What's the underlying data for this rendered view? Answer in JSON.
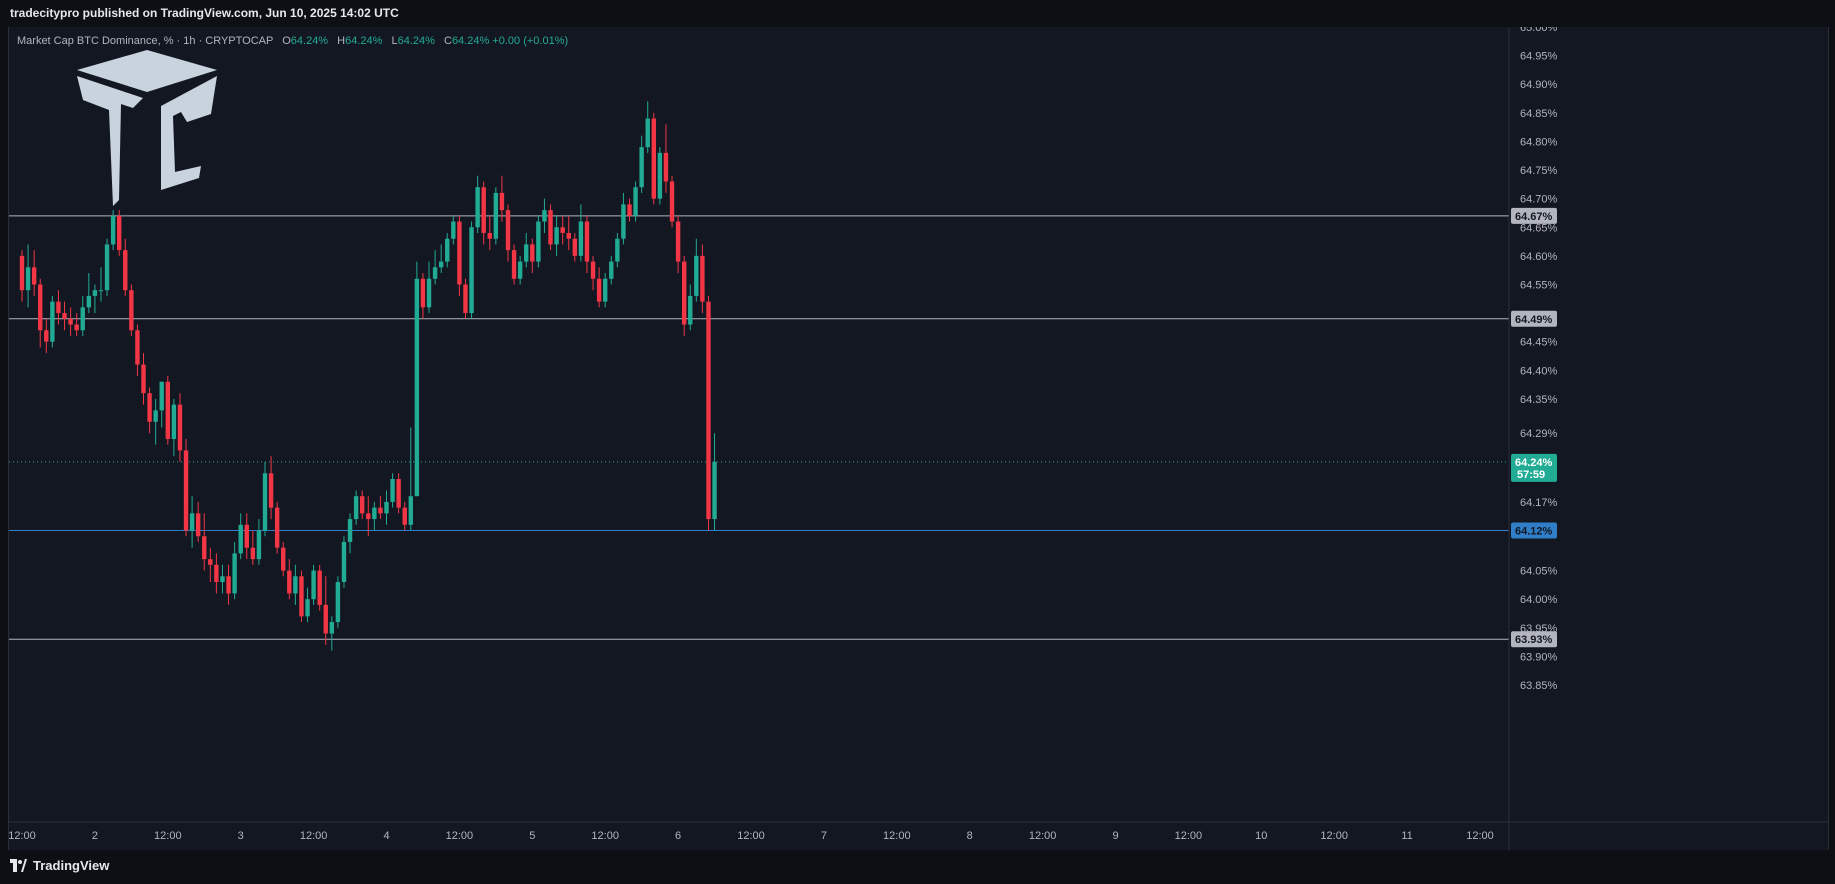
{
  "header": {
    "publish_line": "tradecitypro published on TradingView.com, Jun 10, 2025 14:02 UTC"
  },
  "legend": {
    "symbol": "Market Cap BTC Dominance, % · 1h · CRYPTOCAP",
    "open_label": "O",
    "open_value": "64.24%",
    "high_label": "H",
    "high_value": "64.24%",
    "low_label": "L",
    "low_value": "64.24%",
    "close_label": "C",
    "close_value": "64.24%",
    "change": "+0.00 (+0.01%)"
  },
  "footer": {
    "brand": "TradingView"
  },
  "colors": {
    "up": "#22ab94",
    "down": "#f23645",
    "grid": "#1e222d",
    "axis_text": "#b2b5be",
    "level": "#9598a1",
    "support": "#2962ff"
  },
  "chart_data": {
    "type": "candlestick",
    "title": "Market Cap BTC Dominance, % · 1h · CRYPTOCAP",
    "ylim": [
      63.82,
      65.0
    ],
    "y_ticks": [
      {
        "v": 65.0,
        "label": "65.00%"
      },
      {
        "v": 64.95,
        "label": "64.95%"
      },
      {
        "v": 64.9,
        "label": "64.90%"
      },
      {
        "v": 64.85,
        "label": "64.85%"
      },
      {
        "v": 64.8,
        "label": "64.80%"
      },
      {
        "v": 64.75,
        "label": "64.75%"
      },
      {
        "v": 64.7,
        "label": "64.70%"
      },
      {
        "v": 64.65,
        "label": "64.65%"
      },
      {
        "v": 64.6,
        "label": "64.60%"
      },
      {
        "v": 64.55,
        "label": "64.55%"
      },
      {
        "v": 64.45,
        "label": "64.45%"
      },
      {
        "v": 64.4,
        "label": "64.40%"
      },
      {
        "v": 64.35,
        "label": "64.35%"
      },
      {
        "v": 64.29,
        "label": "64.29%"
      },
      {
        "v": 64.17,
        "label": "64.17%"
      },
      {
        "v": 64.05,
        "label": "64.05%"
      },
      {
        "v": 64.0,
        "label": "64.00%"
      },
      {
        "v": 63.95,
        "label": "63.95%"
      },
      {
        "v": 63.9,
        "label": "63.90%"
      },
      {
        "v": 63.85,
        "label": "63.85%"
      }
    ],
    "x_ticks": [
      {
        "t": 0,
        "label": "12:00"
      },
      {
        "t": 12,
        "label": "2"
      },
      {
        "t": 24,
        "label": "12:00"
      },
      {
        "t": 36,
        "label": "3"
      },
      {
        "t": 48,
        "label": "12:00"
      },
      {
        "t": 60,
        "label": "4"
      },
      {
        "t": 72,
        "label": "12:00"
      },
      {
        "t": 84,
        "label": "5"
      },
      {
        "t": 96,
        "label": "12:00"
      },
      {
        "t": 108,
        "label": "6"
      },
      {
        "t": 120,
        "label": "12:00"
      },
      {
        "t": 132,
        "label": "7"
      },
      {
        "t": 144,
        "label": "12:00"
      },
      {
        "t": 156,
        "label": "8"
      },
      {
        "t": 168,
        "label": "12:00"
      },
      {
        "t": 180,
        "label": "9"
      },
      {
        "t": 192,
        "label": "12:00"
      },
      {
        "t": 204,
        "label": "10"
      },
      {
        "t": 216,
        "label": "12:00"
      },
      {
        "t": 228,
        "label": "11"
      },
      {
        "t": 240,
        "label": "12:00"
      }
    ],
    "levels": [
      {
        "value": 64.67,
        "label": "64.67%",
        "kind": "resistance"
      },
      {
        "value": 64.49,
        "label": "64.49%",
        "kind": "resistance"
      },
      {
        "value": 64.12,
        "label": "64.12%",
        "kind": "support"
      },
      {
        "value": 63.93,
        "label": "63.93%",
        "kind": "support"
      }
    ],
    "last_price": {
      "value": 64.24,
      "label": "64.24%",
      "countdown": "57:59"
    },
    "candles": [
      [
        64.6,
        64.61,
        64.52,
        64.54
      ],
      [
        64.54,
        64.62,
        64.51,
        64.58
      ],
      [
        64.58,
        64.61,
        64.53,
        64.55
      ],
      [
        64.55,
        64.56,
        64.44,
        64.47
      ],
      [
        64.47,
        64.49,
        64.43,
        64.45
      ],
      [
        64.45,
        64.53,
        64.44,
        64.52
      ],
      [
        64.52,
        64.54,
        64.48,
        64.5
      ],
      [
        64.5,
        64.52,
        64.47,
        64.49
      ],
      [
        64.49,
        64.51,
        64.46,
        64.48
      ],
      [
        64.48,
        64.5,
        64.46,
        64.47
      ],
      [
        64.47,
        64.53,
        64.46,
        64.51
      ],
      [
        64.51,
        64.57,
        64.5,
        64.53
      ],
      [
        64.53,
        64.55,
        64.5,
        64.54
      ],
      [
        64.54,
        64.58,
        64.52,
        64.54
      ],
      [
        64.54,
        64.63,
        64.53,
        64.62
      ],
      [
        64.62,
        64.68,
        64.61,
        64.67
      ],
      [
        64.67,
        64.68,
        64.6,
        64.61
      ],
      [
        64.61,
        64.63,
        64.53,
        64.54
      ],
      [
        64.54,
        64.55,
        64.46,
        64.47
      ],
      [
        64.47,
        64.48,
        64.39,
        64.41
      ],
      [
        64.41,
        64.43,
        64.34,
        64.36
      ],
      [
        64.36,
        64.37,
        64.29,
        64.31
      ],
      [
        64.31,
        64.35,
        64.27,
        64.33
      ],
      [
        64.33,
        64.38,
        64.3,
        64.38
      ],
      [
        64.38,
        64.39,
        64.27,
        64.28
      ],
      [
        64.28,
        64.35,
        64.25,
        64.34
      ],
      [
        64.34,
        64.36,
        64.24,
        64.26
      ],
      [
        64.26,
        64.28,
        64.11,
        64.12
      ],
      [
        64.12,
        64.18,
        64.09,
        64.15
      ],
      [
        64.15,
        64.17,
        64.1,
        64.11
      ],
      [
        64.11,
        64.15,
        64.05,
        64.07
      ],
      [
        64.07,
        64.09,
        64.03,
        64.06
      ],
      [
        64.06,
        64.08,
        64.01,
        64.03
      ],
      [
        64.03,
        64.06,
        64.01,
        64.04
      ],
      [
        64.04,
        64.06,
        63.99,
        64.01
      ],
      [
        64.01,
        64.1,
        64.0,
        64.08
      ],
      [
        64.08,
        64.15,
        64.07,
        64.13
      ],
      [
        64.13,
        64.15,
        64.07,
        64.09
      ],
      [
        64.09,
        64.12,
        64.06,
        64.07
      ],
      [
        64.07,
        64.14,
        64.06,
        64.12
      ],
      [
        64.12,
        64.24,
        64.11,
        64.22
      ],
      [
        64.22,
        64.25,
        64.14,
        64.16
      ],
      [
        64.16,
        64.17,
        64.08,
        64.09
      ],
      [
        64.09,
        64.1,
        64.04,
        64.05
      ],
      [
        64.05,
        64.07,
        64.0,
        64.01
      ],
      [
        64.01,
        64.06,
        63.99,
        64.04
      ],
      [
        64.04,
        64.05,
        63.96,
        63.97
      ],
      [
        63.97,
        64.02,
        63.96,
        64.0
      ],
      [
        64.0,
        64.06,
        63.99,
        64.05
      ],
      [
        64.05,
        64.06,
        63.98,
        63.99
      ],
      [
        63.99,
        64.04,
        63.92,
        63.94
      ],
      [
        63.94,
        63.97,
        63.91,
        63.96
      ],
      [
        63.96,
        64.04,
        63.95,
        64.03
      ],
      [
        64.03,
        64.11,
        64.02,
        64.1
      ],
      [
        64.1,
        64.15,
        64.08,
        64.14
      ],
      [
        64.14,
        64.19,
        64.13,
        64.18
      ],
      [
        64.18,
        64.19,
        64.14,
        64.15
      ],
      [
        64.15,
        64.18,
        64.11,
        64.14
      ],
      [
        64.14,
        64.17,
        64.12,
        64.16
      ],
      [
        64.16,
        64.18,
        64.14,
        64.15
      ],
      [
        64.15,
        64.19,
        64.13,
        64.17
      ],
      [
        64.17,
        64.22,
        64.16,
        64.21
      ],
      [
        64.21,
        64.22,
        64.15,
        64.16
      ],
      [
        64.16,
        64.17,
        64.12,
        64.13
      ],
      [
        64.13,
        64.3,
        64.12,
        64.18
      ],
      [
        64.18,
        64.59,
        64.18,
        64.56
      ],
      [
        64.56,
        64.57,
        64.49,
        64.51
      ],
      [
        64.51,
        64.59,
        64.5,
        64.56
      ],
      [
        64.56,
        64.61,
        64.55,
        64.58
      ],
      [
        64.58,
        64.62,
        64.57,
        64.59
      ],
      [
        64.59,
        64.64,
        64.58,
        64.63
      ],
      [
        64.63,
        64.67,
        64.62,
        64.66
      ],
      [
        64.66,
        64.67,
        64.53,
        64.55
      ],
      [
        64.55,
        64.56,
        64.49,
        64.5
      ],
      [
        64.5,
        64.66,
        64.49,
        64.65
      ],
      [
        64.65,
        64.74,
        64.64,
        64.72
      ],
      [
        64.72,
        64.73,
        64.62,
        64.64
      ],
      [
        64.64,
        64.67,
        64.61,
        64.63
      ],
      [
        64.63,
        64.72,
        64.62,
        64.71
      ],
      [
        64.71,
        64.74,
        64.66,
        64.68
      ],
      [
        64.68,
        64.69,
        64.59,
        64.61
      ],
      [
        64.61,
        64.62,
        64.55,
        64.56
      ],
      [
        64.56,
        64.6,
        64.55,
        64.59
      ],
      [
        64.59,
        64.64,
        64.58,
        64.62
      ],
      [
        64.62,
        64.63,
        64.57,
        64.59
      ],
      [
        64.59,
        64.67,
        64.58,
        64.66
      ],
      [
        64.66,
        64.7,
        64.64,
        64.68
      ],
      [
        64.68,
        64.69,
        64.61,
        64.62
      ],
      [
        64.62,
        64.67,
        64.6,
        64.65
      ],
      [
        64.65,
        64.67,
        64.62,
        64.64
      ],
      [
        64.64,
        64.67,
        64.61,
        64.63
      ],
      [
        64.63,
        64.64,
        64.59,
        64.6
      ],
      [
        64.6,
        64.69,
        64.59,
        64.66
      ],
      [
        64.66,
        64.67,
        64.57,
        64.59
      ],
      [
        64.59,
        64.6,
        64.54,
        64.56
      ],
      [
        64.56,
        64.58,
        64.51,
        64.52
      ],
      [
        64.52,
        64.57,
        64.51,
        64.56
      ],
      [
        64.56,
        64.6,
        64.55,
        64.59
      ],
      [
        64.59,
        64.64,
        64.58,
        64.63
      ],
      [
        64.63,
        64.71,
        64.62,
        64.69
      ],
      [
        64.69,
        64.7,
        64.66,
        64.67
      ],
      [
        64.67,
        64.73,
        64.66,
        64.72
      ],
      [
        64.72,
        64.81,
        64.71,
        64.79
      ],
      [
        64.79,
        64.87,
        64.78,
        64.84
      ],
      [
        64.84,
        64.85,
        64.69,
        64.7
      ],
      [
        64.7,
        64.79,
        64.69,
        64.78
      ],
      [
        64.78,
        64.83,
        64.71,
        64.73
      ],
      [
        64.73,
        64.74,
        64.65,
        64.66
      ],
      [
        64.66,
        64.67,
        64.57,
        64.59
      ],
      [
        64.59,
        64.6,
        64.46,
        64.48
      ],
      [
        64.48,
        64.55,
        64.47,
        64.53
      ],
      [
        64.53,
        64.63,
        64.52,
        64.6
      ],
      [
        64.6,
        64.62,
        64.5,
        64.52
      ],
      [
        64.52,
        64.53,
        64.12,
        64.14
      ],
      [
        64.14,
        64.29,
        64.12,
        64.24
      ]
    ]
  }
}
